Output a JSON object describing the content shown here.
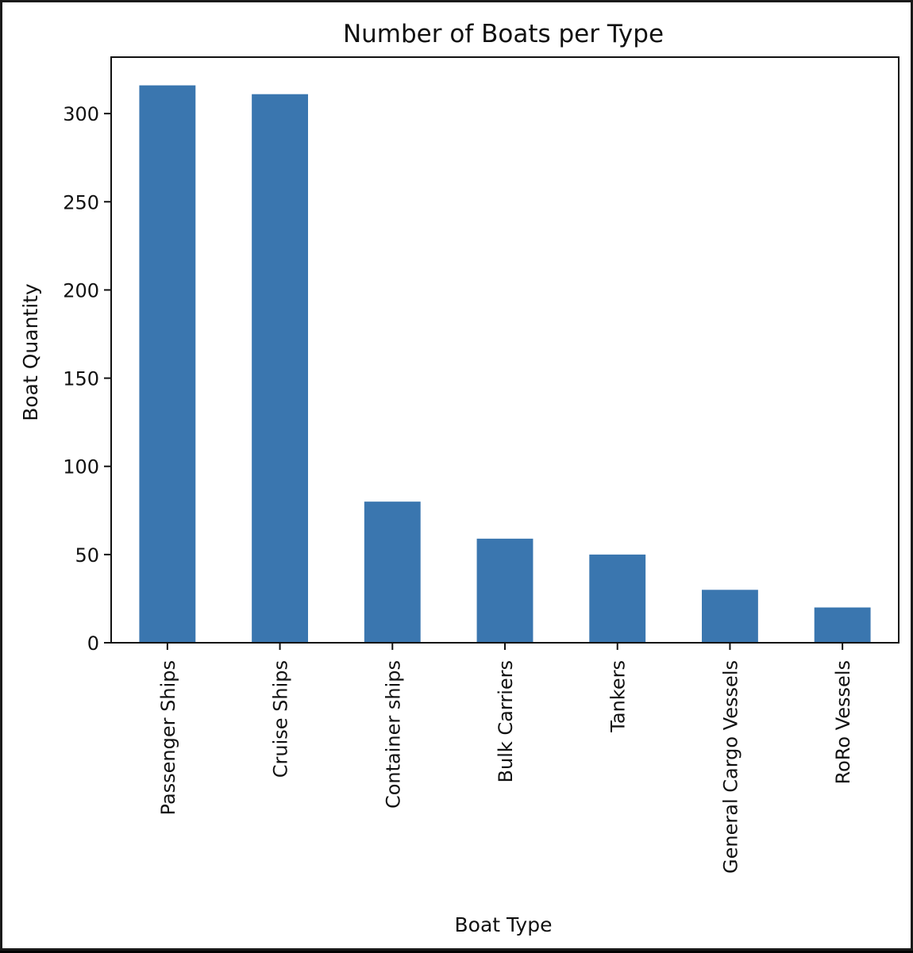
{
  "chart_data": {
    "type": "bar",
    "title": "Number of Boats per Type",
    "xlabel": "Boat Type",
    "ylabel": "Boat Quantity",
    "categories": [
      "Passenger Ships",
      "Cruise Ships",
      "Container ships",
      "Bulk Carriers",
      "Tankers",
      "General Cargo Vessels",
      "RoRo Vessels"
    ],
    "values": [
      316,
      311,
      80,
      59,
      50,
      30,
      20
    ],
    "ylim": [
      0,
      332
    ],
    "yticks": [
      0,
      50,
      100,
      150,
      200,
      250,
      300
    ],
    "grid": false,
    "bar_color": "#3a76af"
  }
}
